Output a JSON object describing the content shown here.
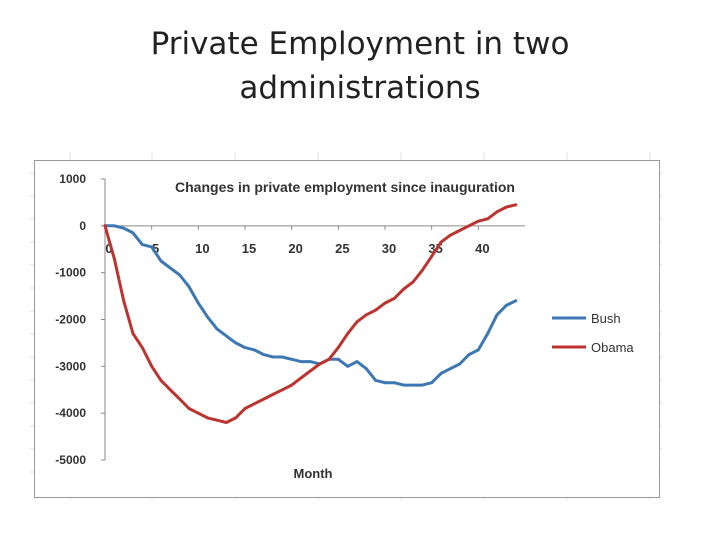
{
  "slide": {
    "title_line1": "Private Employment in two",
    "title_line2": "administrations"
  },
  "chart_data": {
    "type": "line",
    "title": "Changes in private employment since inauguration",
    "xlabel": "Month",
    "ylabel": "",
    "xlim": [
      0,
      45
    ],
    "ylim": [
      -5000,
      1000
    ],
    "x_ticks": [
      0,
      5,
      10,
      15,
      20,
      25,
      30,
      35,
      40
    ],
    "y_ticks": [
      1000,
      0,
      -1000,
      -2000,
      -3000,
      -4000,
      -5000
    ],
    "grid": false,
    "legend": "right",
    "series": [
      {
        "name": "Bush",
        "color": "#3E78B4",
        "x": [
          0,
          1,
          2,
          3,
          4,
          5,
          6,
          7,
          8,
          9,
          10,
          11,
          12,
          13,
          14,
          15,
          16,
          17,
          18,
          19,
          20,
          21,
          22,
          23,
          24,
          25,
          26,
          27,
          28,
          29,
          30,
          31,
          32,
          33,
          34,
          35,
          36,
          37,
          38,
          39,
          40,
          41,
          42,
          43,
          44
        ],
        "y": [
          0,
          0,
          -50,
          -150,
          -400,
          -450,
          -750,
          -900,
          -1050,
          -1300,
          -1650,
          -1950,
          -2200,
          -2350,
          -2500,
          -2600,
          -2650,
          -2750,
          -2800,
          -2800,
          -2850,
          -2900,
          -2900,
          -2950,
          -2850,
          -2850,
          -3000,
          -2900,
          -3050,
          -3300,
          -3350,
          -3350,
          -3400,
          -3400,
          -3400,
          -3350,
          -3150,
          -3050,
          -2950,
          -2750,
          -2650,
          -2300,
          -1900,
          -1700,
          -1600
        ]
      },
      {
        "name": "Obama",
        "color": "#BC3430",
        "x": [
          0,
          1,
          2,
          3,
          4,
          5,
          6,
          7,
          8,
          9,
          10,
          11,
          12,
          13,
          14,
          15,
          16,
          17,
          18,
          19,
          20,
          21,
          22,
          23,
          24,
          25,
          26,
          27,
          28,
          29,
          30,
          31,
          32,
          33,
          34,
          35,
          36,
          37,
          38,
          39,
          40,
          41,
          42,
          43,
          44
        ],
        "y": [
          0,
          -700,
          -1600,
          -2300,
          -2600,
          -3000,
          -3300,
          -3500,
          -3700,
          -3900,
          -4000,
          -4100,
          -4150,
          -4200,
          -4100,
          -3900,
          -3800,
          -3700,
          -3600,
          -3500,
          -3400,
          -3250,
          -3100,
          -2950,
          -2850,
          -2600,
          -2300,
          -2050,
          -1900,
          -1800,
          -1650,
          -1550,
          -1350,
          -1200,
          -950,
          -650,
          -350,
          -200,
          -100,
          0,
          100,
          150,
          300,
          400,
          450
        ]
      }
    ]
  }
}
